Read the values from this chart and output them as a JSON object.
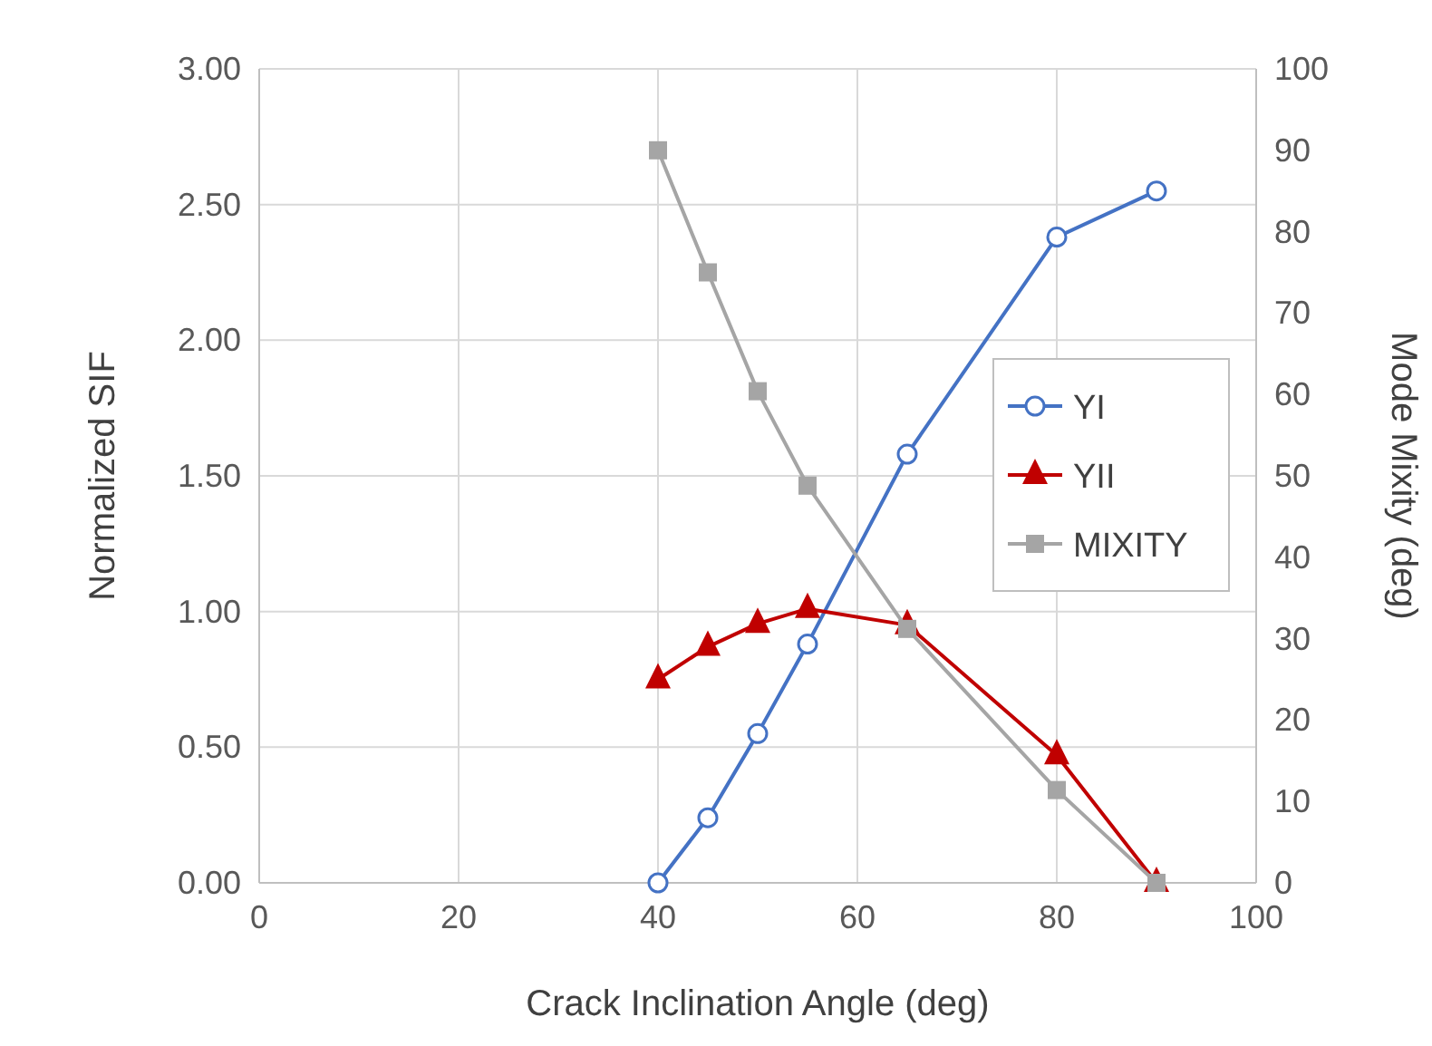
{
  "chart_data": {
    "type": "line",
    "xlabel": "Crack Inclination Angle (deg)",
    "ylabel": "Normalized SIF",
    "y2label": "Mode Mixity (deg)",
    "x": [
      40,
      45,
      50,
      55,
      65,
      80,
      90
    ],
    "xlim": [
      0,
      100
    ],
    "xticks": [
      0,
      20,
      40,
      60,
      80,
      100
    ],
    "ylim": [
      0,
      3
    ],
    "yticks": [
      {
        "value": 0,
        "label": "0.00"
      },
      {
        "value": 0.5,
        "label": "0.50"
      },
      {
        "value": 1,
        "label": "1.00"
      },
      {
        "value": 1.5,
        "label": "1.50"
      },
      {
        "value": 2,
        "label": "2.00"
      },
      {
        "value": 2.5,
        "label": "2.50"
      },
      {
        "value": 3,
        "label": "3.00"
      }
    ],
    "y2lim": [
      0,
      100
    ],
    "y2ticks": [
      0,
      10,
      20,
      30,
      40,
      50,
      60,
      70,
      80,
      90,
      100
    ],
    "grid": true,
    "legend": "right",
    "line_style": "solid",
    "series": [
      {
        "name": "YI",
        "color": "#4472c4",
        "marker": "circle",
        "values": [
          0,
          0.24,
          0.55,
          0.88,
          1.58,
          2.38,
          2.55
        ]
      },
      {
        "name": "YII",
        "color": "#c00000",
        "marker": "triangle",
        "values": [
          0.75,
          0.87,
          0.955,
          1.01,
          0.95,
          0.47,
          0
        ]
      },
      {
        "name": "MIXITY",
        "color": "#a5a5a5",
        "marker": "square",
        "axis": "y2",
        "values": [
          90,
          75,
          60.4,
          48.8,
          31.2,
          11.4,
          0
        ]
      }
    ]
  }
}
